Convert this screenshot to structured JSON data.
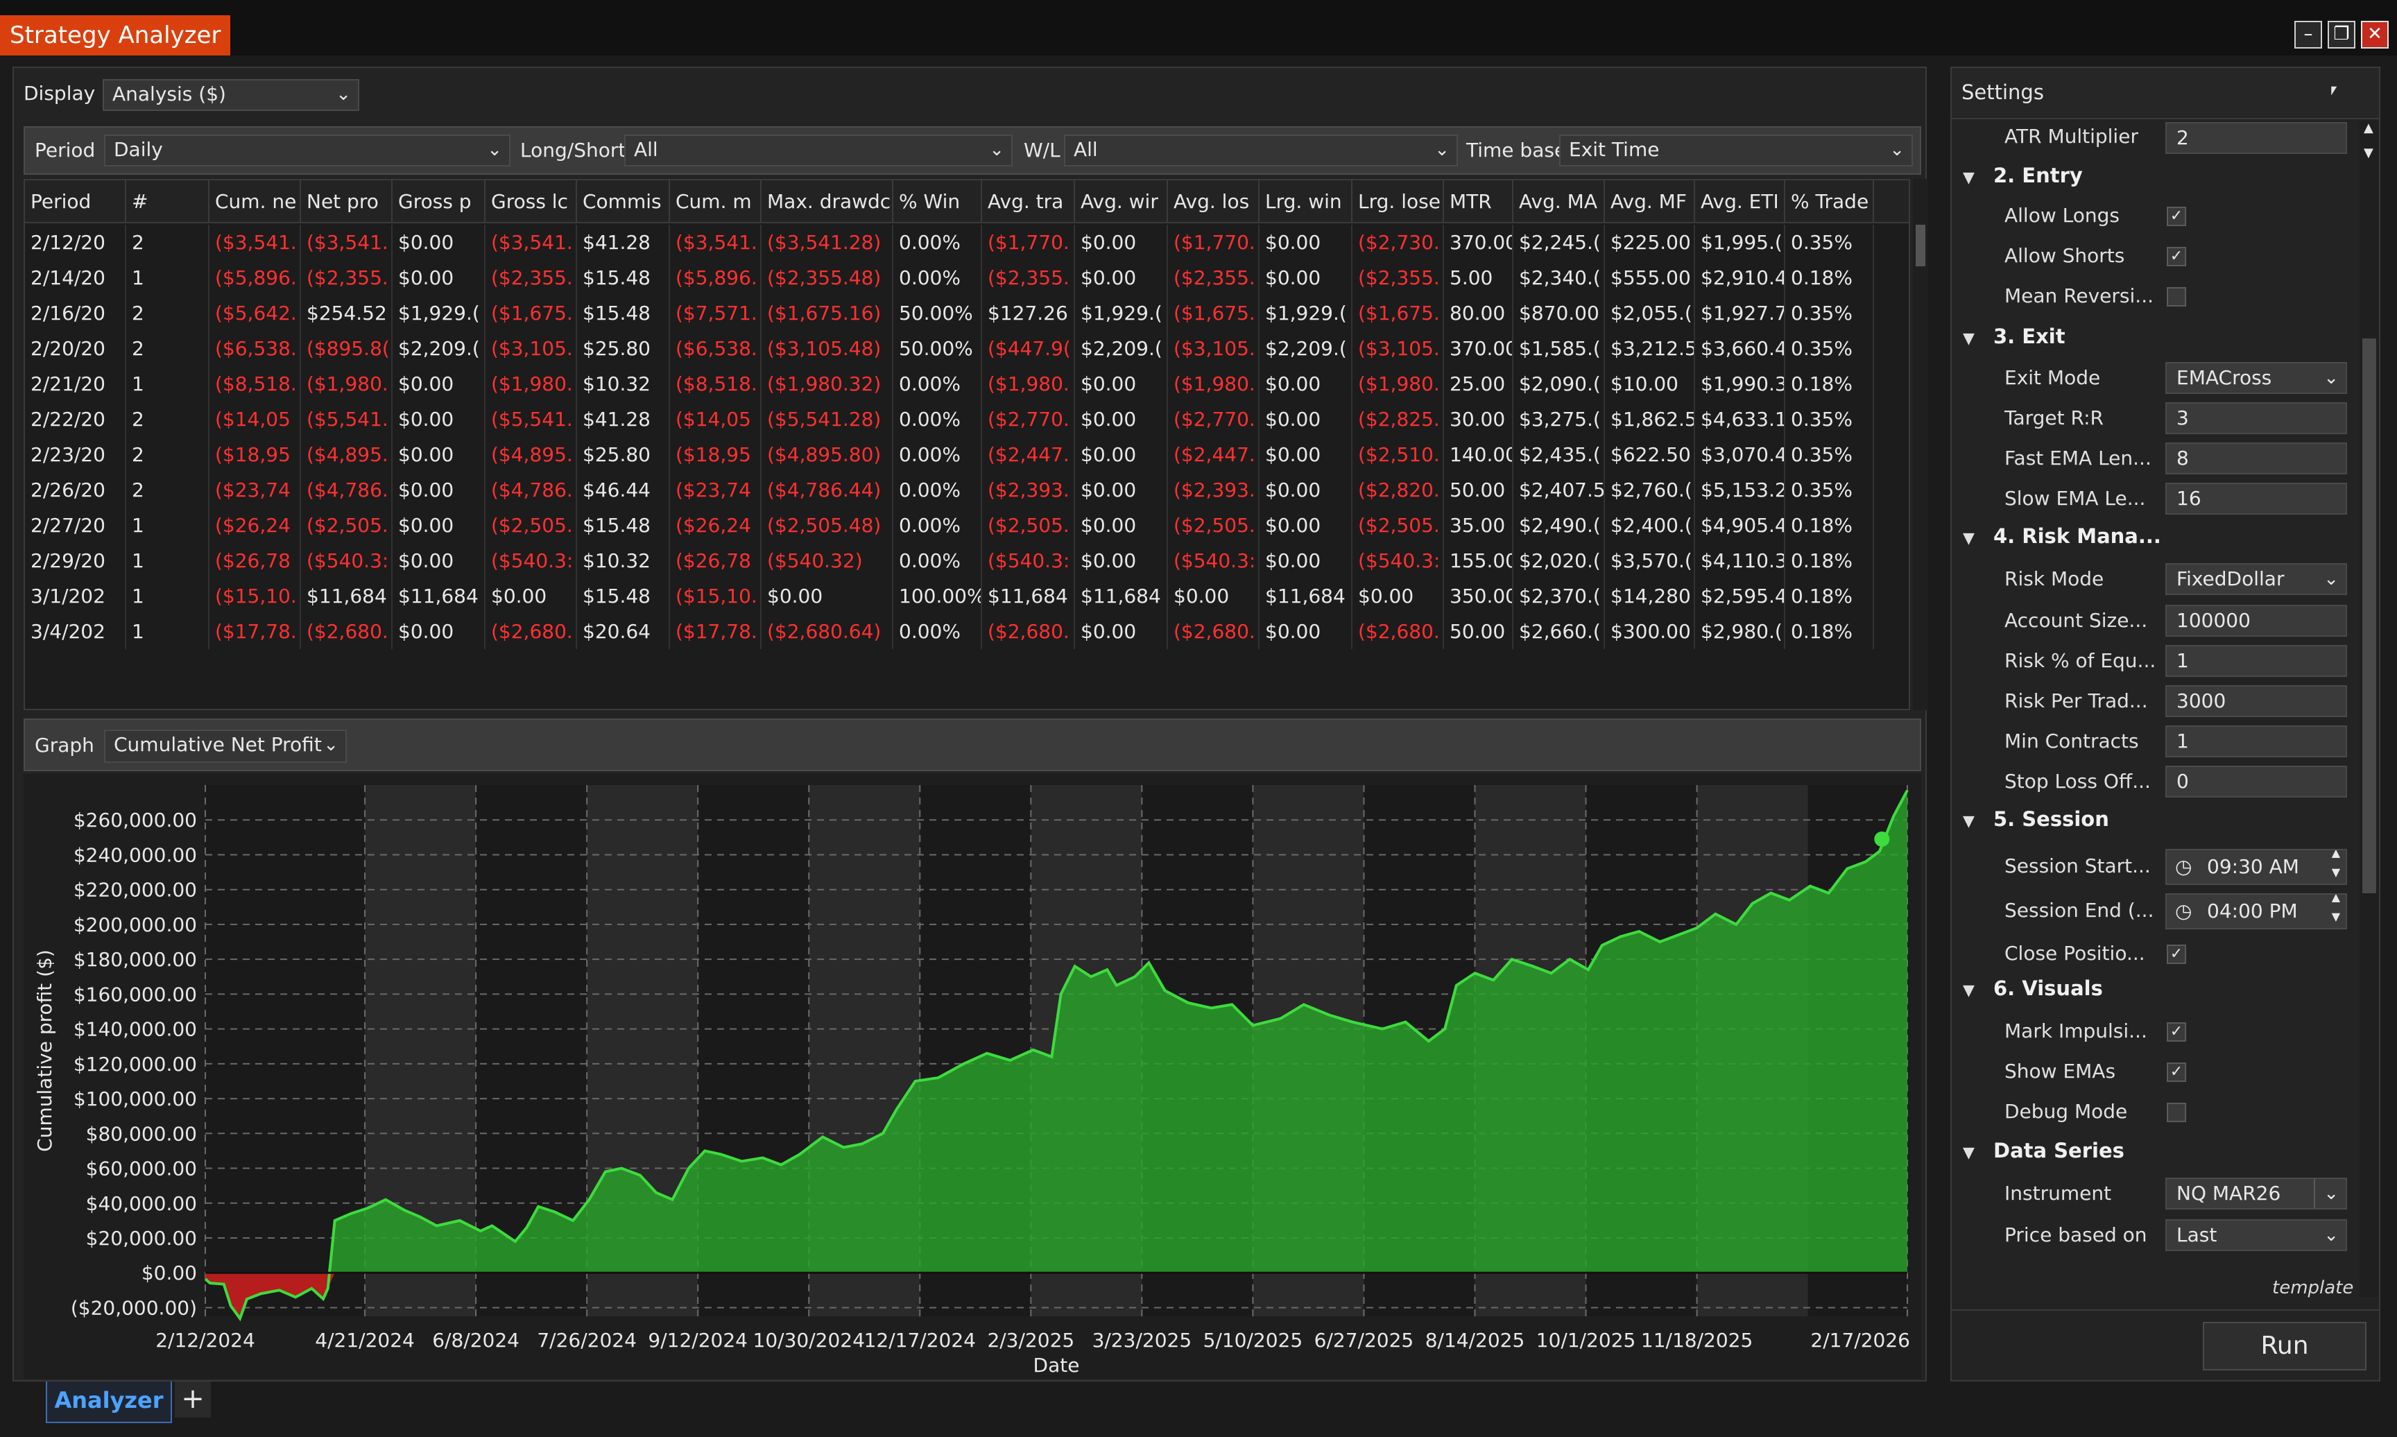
{
  "window": {
    "title": "Strategy Analyzer",
    "minimize_glyph": "–",
    "restore_glyph": "❐",
    "close_glyph": "✕"
  },
  "display": {
    "label": "Display",
    "value": "Analysis ($)"
  },
  "filters": {
    "period_label": "Period",
    "period_value": "Daily",
    "longshort_label": "Long/Short",
    "longshort_value": "All",
    "wl_label": "W/L",
    "wl_value": "All",
    "timebase_label": "Time base",
    "timebase_value": "Exit Time"
  },
  "table": {
    "columns": [
      "Period",
      "#",
      "Cum. ne",
      "Net pro",
      "Gross p",
      "Gross lc",
      "Commis",
      "Cum. m",
      "Max. drawdc",
      "% Win",
      "Avg. tra",
      "Avg. wir",
      "Avg. los",
      "Lrg. win",
      "Lrg. lose",
      "MTR",
      "Avg. MA",
      "Avg. MF",
      "Avg. ETI",
      "% Trade"
    ],
    "rows": [
      [
        "2/12/20",
        "2",
        "($3,541.",
        "($3,541.",
        "$0.00",
        "($3,541.",
        "$41.28",
        "($3,541.",
        "($3,541.28)",
        "0.00%",
        "($1,770.",
        "$0.00",
        "($1,770.",
        "$0.00",
        "($2,730.",
        "370.00",
        "$2,245.(",
        "$225.00",
        "$1,995.(",
        "0.35%"
      ],
      [
        "2/14/20",
        "1",
        "($5,896.",
        "($2,355.",
        "$0.00",
        "($2,355.",
        "$15.48",
        "($5,896.",
        "($2,355.48)",
        "0.00%",
        "($2,355.",
        "$0.00",
        "($2,355.",
        "$0.00",
        "($2,355.",
        "5.00",
        "$2,340.(",
        "$555.00",
        "$2,910.4",
        "0.18%"
      ],
      [
        "2/16/20",
        "2",
        "($5,642.",
        "$254.52",
        "$1,929.(",
        "($1,675.",
        "$15.48",
        "($7,571.",
        "($1,675.16)",
        "50.00%",
        "$127.26",
        "$1,929.(",
        "($1,675.",
        "$1,929.(",
        "($1,675.",
        "80.00",
        "$870.00",
        "$2,055.(",
        "$1,927.7",
        "0.35%"
      ],
      [
        "2/20/20",
        "2",
        "($6,538.",
        "($895.8(",
        "$2,209.(",
        "($3,105.",
        "$25.80",
        "($6,538.",
        "($3,105.48)",
        "50.00%",
        "($447.9(",
        "$2,209.(",
        "($3,105.",
        "$2,209.(",
        "($3,105.",
        "370.00",
        "$1,585.(",
        "$3,212.5",
        "$3,660.4",
        "0.35%"
      ],
      [
        "2/21/20",
        "1",
        "($8,518.",
        "($1,980.",
        "$0.00",
        "($1,980.",
        "$10.32",
        "($8,518.",
        "($1,980.32)",
        "0.00%",
        "($1,980.",
        "$0.00",
        "($1,980.",
        "$0.00",
        "($1,980.",
        "25.00",
        "$2,090.(",
        "$10.00",
        "$1,990.3",
        "0.18%"
      ],
      [
        "2/22/20",
        "2",
        "($14,05",
        "($5,541.",
        "$0.00",
        "($5,541.",
        "$41.28",
        "($14,05",
        "($5,541.28)",
        "0.00%",
        "($2,770.",
        "$0.00",
        "($2,770.",
        "$0.00",
        "($2,825.",
        "30.00",
        "$3,275.(",
        "$1,862.5",
        "$4,633.1",
        "0.35%"
      ],
      [
        "2/23/20",
        "2",
        "($18,95",
        "($4,895.",
        "$0.00",
        "($4,895.",
        "$25.80",
        "($18,95",
        "($4,895.80)",
        "0.00%",
        "($2,447.",
        "$0.00",
        "($2,447.",
        "$0.00",
        "($2,510.",
        "140.00",
        "$2,435.(",
        "$622.50",
        "$3,070.4",
        "0.35%"
      ],
      [
        "2/26/20",
        "2",
        "($23,74",
        "($4,786.",
        "$0.00",
        "($4,786.",
        "$46.44",
        "($23,74",
        "($4,786.44)",
        "0.00%",
        "($2,393.",
        "$0.00",
        "($2,393.",
        "$0.00",
        "($2,820.",
        "50.00",
        "$2,407.5",
        "$2,760.(",
        "$5,153.2",
        "0.35%"
      ],
      [
        "2/27/20",
        "1",
        "($26,24",
        "($2,505.",
        "$0.00",
        "($2,505.",
        "$15.48",
        "($26,24",
        "($2,505.48)",
        "0.00%",
        "($2,505.",
        "$0.00",
        "($2,505.",
        "$0.00",
        "($2,505.",
        "35.00",
        "$2,490.(",
        "$2,400.(",
        "$4,905.4",
        "0.18%"
      ],
      [
        "2/29/20",
        "1",
        "($26,78",
        "($540.3:",
        "$0.00",
        "($540.3:",
        "$10.32",
        "($26,78",
        "($540.32)",
        "0.00%",
        "($540.3:",
        "$0.00",
        "($540.3:",
        "$0.00",
        "($540.3:",
        "155.00",
        "$2,020.(",
        "$3,570.(",
        "$4,110.3",
        "0.18%"
      ],
      [
        "3/1/202",
        "1",
        "($15,10.",
        "$11,684",
        "$11,684",
        "$0.00",
        "$15.48",
        "($15,10.",
        "$0.00",
        "100.00%",
        "$11,684",
        "$11,684",
        "$0.00",
        "$11,684",
        "$0.00",
        "350.00",
        "$2,370.(",
        "$14,280",
        "$2,595.4",
        "0.18%"
      ],
      [
        "3/4/202",
        "1",
        "($17,78.",
        "($2,680.",
        "$0.00",
        "($2,680.",
        "$20.64",
        "($17,78.",
        "($2,680.64)",
        "0.00%",
        "($2,680.",
        "$0.00",
        "($2,680.",
        "$0.00",
        "($2,680.",
        "50.00",
        "$2,660.(",
        "$300.00",
        "$2,980.(",
        "0.18%"
      ]
    ]
  },
  "graph": {
    "label": "Graph",
    "value": "Cumulative Net Profit"
  },
  "chart_data": {
    "type": "area",
    "title": "",
    "xlabel": "Date",
    "ylabel": "Cumulative profit ($)",
    "ylim": [
      -25000,
      280000
    ],
    "yticks": [
      "$260,000.00",
      "$240,000.00",
      "$220,000.00",
      "$200,000.00",
      "$180,000.00",
      "$160,000.00",
      "$140,000.00",
      "$120,000.00",
      "$100,000.00",
      "$80,000.00",
      "$60,000.00",
      "$40,000.00",
      "$20,000.00",
      "$0.00",
      "($20,000.00)"
    ],
    "ytick_values": [
      260000,
      240000,
      220000,
      200000,
      180000,
      160000,
      140000,
      120000,
      100000,
      80000,
      60000,
      40000,
      20000,
      0,
      -20000
    ],
    "xticks": [
      "2/12/2024",
      "4/21/2024",
      "6/8/2024",
      "7/26/2024",
      "9/12/2024",
      "10/30/2024",
      "12/17/2024",
      "2/3/2025",
      "3/23/2025",
      "5/10/2025",
      "6/27/2025",
      "8/14/2025",
      "10/1/2025",
      "11/18/2025",
      "2/17/2026"
    ],
    "grid": true,
    "positive_color": "#2aa52a",
    "negative_color": "#c81e1e",
    "line_color": "#3ddc3d",
    "points": [
      [
        "2024-02-12",
        -3541
      ],
      [
        "2024-02-14",
        -5896
      ],
      [
        "2024-02-20",
        -6538
      ],
      [
        "2024-02-23",
        -18950
      ],
      [
        "2024-02-27",
        -26240
      ],
      [
        "2024-03-01",
        -15100
      ],
      [
        "2024-03-07",
        -12000
      ],
      [
        "2024-03-15",
        -10000
      ],
      [
        "2024-03-22",
        -14000
      ],
      [
        "2024-03-29",
        -9000
      ],
      [
        "2024-04-03",
        -15000
      ],
      [
        "2024-04-05",
        -9000
      ],
      [
        "2024-04-08",
        30000
      ],
      [
        "2024-04-15",
        34000
      ],
      [
        "2024-04-22",
        37000
      ],
      [
        "2024-04-30",
        42000
      ],
      [
        "2024-05-08",
        36000
      ],
      [
        "2024-05-15",
        32000
      ],
      [
        "2024-05-22",
        27000
      ],
      [
        "2024-06-01",
        30000
      ],
      [
        "2024-06-10",
        24000
      ],
      [
        "2024-06-15",
        27000
      ],
      [
        "2024-06-25",
        18000
      ],
      [
        "2024-06-30",
        26000
      ],
      [
        "2024-07-05",
        38000
      ],
      [
        "2024-07-12",
        35000
      ],
      [
        "2024-07-20",
        30000
      ],
      [
        "2024-07-27",
        42000
      ],
      [
        "2024-08-03",
        58000
      ],
      [
        "2024-08-10",
        60000
      ],
      [
        "2024-08-18",
        56000
      ],
      [
        "2024-08-25",
        46000
      ],
      [
        "2024-09-01",
        42000
      ],
      [
        "2024-09-08",
        60000
      ],
      [
        "2024-09-15",
        70000
      ],
      [
        "2024-09-22",
        68000
      ],
      [
        "2024-10-01",
        64000
      ],
      [
        "2024-10-10",
        66000
      ],
      [
        "2024-10-18",
        62000
      ],
      [
        "2024-10-26",
        68000
      ],
      [
        "2024-11-05",
        78000
      ],
      [
        "2024-11-14",
        72000
      ],
      [
        "2024-11-22",
        74000
      ],
      [
        "2024-12-01",
        80000
      ],
      [
        "2024-12-07",
        94000
      ],
      [
        "2024-12-15",
        110000
      ],
      [
        "2024-12-25",
        112000
      ],
      [
        "2025-01-05",
        120000
      ],
      [
        "2025-01-15",
        126000
      ],
      [
        "2025-01-25",
        122000
      ],
      [
        "2025-02-04",
        128000
      ],
      [
        "2025-02-12",
        124000
      ],
      [
        "2025-02-16",
        160000
      ],
      [
        "2025-02-22",
        176000
      ],
      [
        "2025-03-01",
        170000
      ],
      [
        "2025-03-08",
        174000
      ],
      [
        "2025-03-12",
        165000
      ],
      [
        "2025-03-20",
        170000
      ],
      [
        "2025-03-26",
        178000
      ],
      [
        "2025-04-02",
        162000
      ],
      [
        "2025-04-12",
        155000
      ],
      [
        "2025-04-22",
        152000
      ],
      [
        "2025-05-01",
        154000
      ],
      [
        "2025-05-10",
        142000
      ],
      [
        "2025-05-22",
        146000
      ],
      [
        "2025-06-01",
        154000
      ],
      [
        "2025-06-12",
        148000
      ],
      [
        "2025-06-22",
        144000
      ],
      [
        "2025-07-05",
        140000
      ],
      [
        "2025-07-15",
        144000
      ],
      [
        "2025-07-25",
        133000
      ],
      [
        "2025-08-01",
        140000
      ],
      [
        "2025-08-06",
        165000
      ],
      [
        "2025-08-14",
        172000
      ],
      [
        "2025-08-22",
        168000
      ],
      [
        "2025-08-30",
        180000
      ],
      [
        "2025-09-08",
        176000
      ],
      [
        "2025-09-16",
        172000
      ],
      [
        "2025-09-24",
        180000
      ],
      [
        "2025-10-02",
        174000
      ],
      [
        "2025-10-08",
        188000
      ],
      [
        "2025-10-16",
        193000
      ],
      [
        "2025-10-24",
        196000
      ],
      [
        "2025-11-02",
        190000
      ],
      [
        "2025-11-10",
        194000
      ],
      [
        "2025-11-18",
        198000
      ],
      [
        "2025-11-26",
        206000
      ],
      [
        "2025-12-05",
        200000
      ],
      [
        "2025-12-12",
        212000
      ],
      [
        "2025-12-20",
        218000
      ],
      [
        "2025-12-28",
        214000
      ],
      [
        "2026-01-06",
        222000
      ],
      [
        "2026-01-14",
        218000
      ],
      [
        "2026-01-22",
        232000
      ],
      [
        "2026-01-30",
        236000
      ],
      [
        "2026-02-05",
        242000
      ],
      [
        "2026-02-11",
        262000
      ],
      [
        "2026-02-17",
        277000
      ]
    ],
    "marker": [
      "2026-02-06",
      249000
    ],
    "shaded_bands": [
      [
        "2024-04-21",
        "2024-06-08"
      ],
      [
        "2024-07-26",
        "2024-09-12"
      ],
      [
        "2024-10-30",
        "2024-12-17"
      ],
      [
        "2025-02-03",
        "2025-03-23"
      ],
      [
        "2025-05-10",
        "2025-06-27"
      ],
      [
        "2025-08-14",
        "2025-10-01"
      ],
      [
        "2025-11-18",
        "2026-01-05"
      ]
    ]
  },
  "settings": {
    "title": "Settings",
    "pin_glyph": "📌",
    "atr_label": "ATR Multiplier",
    "atr_value": "2",
    "cat2": "2. Entry",
    "allow_longs": "Allow Longs",
    "allow_shorts": "Allow Shorts",
    "mean_rev": "Mean Reversi...",
    "cat3": "3. Exit",
    "exit_mode_label": "Exit Mode",
    "exit_mode_value": "EMACross",
    "target_rr_label": "Target R:R",
    "target_rr_value": "3",
    "fast_ema_label": "Fast EMA Len...",
    "fast_ema_value": "8",
    "slow_ema_label": "Slow EMA Le...",
    "slow_ema_value": "16",
    "cat4": "4. Risk Mana...",
    "risk_mode_label": "Risk Mode",
    "risk_mode_value": "FixedDollar",
    "account_label": "Account Size...",
    "account_value": "100000",
    "risk_pct_label": "Risk % of Equ...",
    "risk_pct_value": "1",
    "risk_trade_label": "Risk Per Trad...",
    "risk_trade_value": "3000",
    "min_contracts_label": "Min Contracts",
    "min_contracts_value": "1",
    "stop_loss_label": "Stop Loss Off...",
    "stop_loss_value": "0",
    "cat5": "5. Session",
    "session_start_label": "Session Start...",
    "session_start_value": "09:30 AM",
    "session_end_label": "Session End (...",
    "session_end_value": "04:00 PM",
    "close_pos_label": "Close Positio...",
    "cat6": "6. Visuals",
    "mark_impulse_label": "Mark Impulsi...",
    "show_emas_label": "Show EMAs",
    "debug_label": "Debug Mode",
    "cat_data": "Data Series",
    "instrument_label": "Instrument",
    "instrument_value": "NQ MAR26",
    "price_label": "Price based on",
    "price_value": "Last",
    "template": "template",
    "run": "Run"
  },
  "tabs": {
    "analyzer": "Analyzer",
    "add": "+"
  }
}
